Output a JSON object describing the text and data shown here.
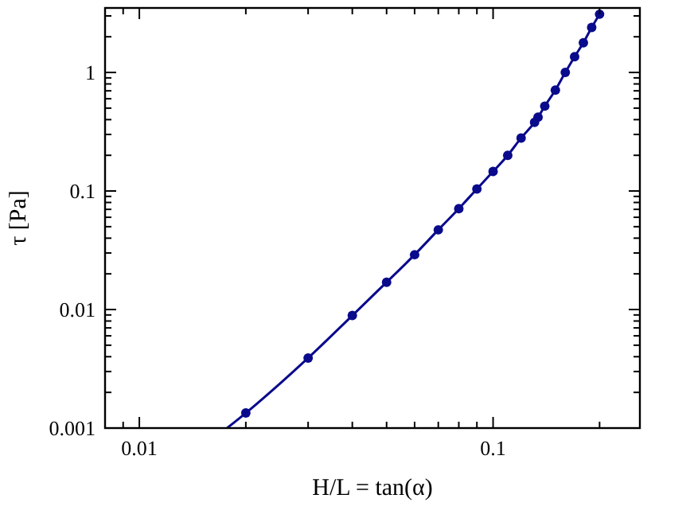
{
  "chart_data": {
    "type": "line",
    "xlabel": "H/L = tan(α)",
    "ylabel": "τ [Pa]",
    "log": "xy",
    "grid": false,
    "xlim": [
      0.008,
      0.26
    ],
    "ylim": [
      0.001,
      3.5
    ],
    "xticks": [
      {
        "value": 0.008,
        "label": null
      },
      {
        "value": 0.009,
        "label": null
      },
      0.01,
      {
        "value": 0.02,
        "label": null
      },
      {
        "value": 0.03,
        "label": null
      },
      {
        "value": 0.04,
        "label": null
      },
      {
        "value": 0.05,
        "label": null
      },
      {
        "value": 0.06,
        "label": null
      },
      {
        "value": 0.07,
        "label": null
      },
      {
        "value": 0.08,
        "label": null
      },
      {
        "value": 0.09,
        "label": null
      },
      0.1,
      {
        "value": 0.2,
        "label": null
      }
    ],
    "yticks": [
      0.001,
      {
        "value": 0.002,
        "label": null
      },
      {
        "value": 0.003,
        "label": null
      },
      {
        "value": 0.004,
        "label": null
      },
      {
        "value": 0.005,
        "label": null
      },
      {
        "value": 0.006,
        "label": null
      },
      {
        "value": 0.007,
        "label": null
      },
      {
        "value": 0.008,
        "label": null
      },
      {
        "value": 0.009,
        "label": null
      },
      0.01,
      {
        "value": 0.02,
        "label": null
      },
      {
        "value": 0.03,
        "label": null
      },
      {
        "value": 0.04,
        "label": null
      },
      {
        "value": 0.05,
        "label": null
      },
      {
        "value": 0.06,
        "label": null
      },
      {
        "value": 0.07,
        "label": null
      },
      {
        "value": 0.08,
        "label": null
      },
      {
        "value": 0.09,
        "label": null
      },
      0.1,
      {
        "value": 0.2,
        "label": null
      },
      {
        "value": 0.3,
        "label": null
      },
      {
        "value": 0.4,
        "label": null
      },
      {
        "value": 0.5,
        "label": null
      },
      {
        "value": 0.6,
        "label": null
      },
      {
        "value": 0.7,
        "label": null
      },
      {
        "value": 0.8,
        "label": null
      },
      {
        "value": 0.9,
        "label": null
      },
      1,
      {
        "value": 2,
        "label": null
      },
      {
        "value": 3,
        "label": null
      }
    ],
    "series": [
      {
        "marker": "none",
        "color": "#0a0a8c",
        "x": [
          0.0177,
          0.02,
          0.03,
          0.04,
          0.05,
          0.06,
          0.07,
          0.08,
          0.09,
          0.1,
          0.11,
          0.12,
          0.131,
          0.134,
          0.14,
          0.15,
          0.16,
          0.17,
          0.18,
          0.19,
          0.2
        ],
        "values": [
          0.001,
          0.00134,
          0.0039,
          0.0089,
          0.017,
          0.029,
          0.047,
          0.071,
          0.104,
          0.146,
          0.2,
          0.28,
          0.38,
          0.42,
          0.52,
          0.71,
          1.0,
          1.36,
          1.78,
          2.4,
          3.1
        ]
      },
      {
        "type": "scatter",
        "marker": "circle",
        "color": "#0a0a8c",
        "x": [
          0.02,
          0.03,
          0.04,
          0.05,
          0.06,
          0.07,
          0.08,
          0.09,
          0.1,
          0.11,
          0.12,
          0.131,
          0.134,
          0.14,
          0.15,
          0.16,
          0.17,
          0.18,
          0.19,
          0.2
        ],
        "values": [
          0.00134,
          0.0039,
          0.0089,
          0.017,
          0.029,
          0.047,
          0.071,
          0.104,
          0.146,
          0.2,
          0.28,
          0.38,
          0.42,
          0.52,
          0.71,
          1.0,
          1.36,
          1.78,
          2.4,
          3.1
        ]
      }
    ]
  }
}
